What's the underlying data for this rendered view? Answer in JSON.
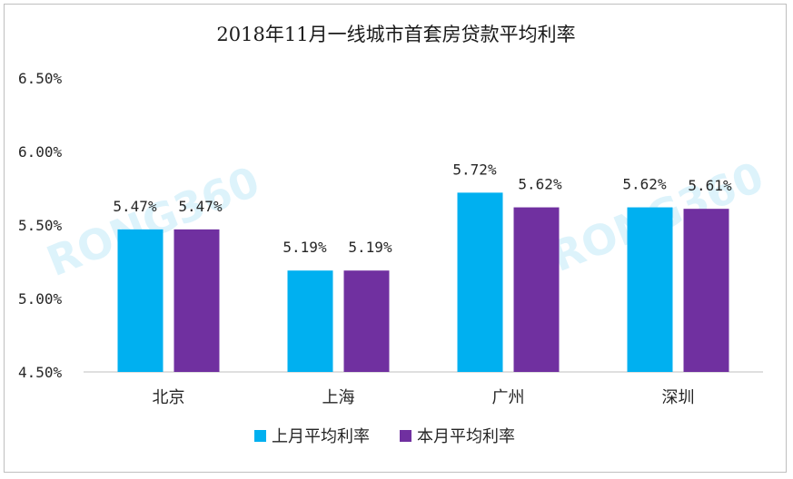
{
  "chart_data": {
    "type": "bar",
    "title": "2018年11月一线城市首套房贷款平均利率",
    "xlabel": "",
    "ylabel": "",
    "categories": [
      "北京",
      "上海",
      "广州",
      "深圳"
    ],
    "series": [
      {
        "name": "上月平均利率",
        "values": [
          5.47,
          5.19,
          5.72,
          5.62
        ],
        "labels": [
          "5.47%",
          "5.19%",
          "5.72%",
          "5.62%"
        ],
        "color": "#00b0f0"
      },
      {
        "name": "本月平均利率",
        "values": [
          5.47,
          5.19,
          5.62,
          5.61
        ],
        "labels": [
          "5.47%",
          "5.19%",
          "5.62%",
          "5.61%"
        ],
        "color": "#7030a0"
      }
    ],
    "ylim": [
      4.5,
      6.5
    ],
    "yticks": [
      4.5,
      5.0,
      5.5,
      6.0,
      6.5
    ],
    "ytick_labels": [
      "4.50%",
      "5.00%",
      "5.50%",
      "6.00%",
      "6.50%"
    ],
    "grid": false,
    "legend_position": "bottom"
  },
  "watermark": "RONG360"
}
